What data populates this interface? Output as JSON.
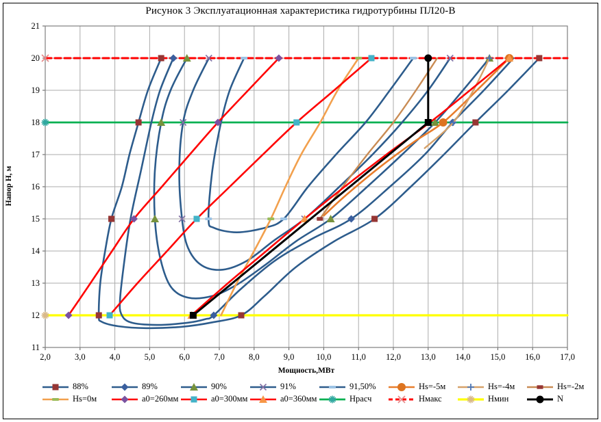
{
  "title": "Рисунок 3 Эксплуатационная характеристика гидротурбины ПЛ20-В",
  "chart_data": {
    "type": "line",
    "title": "Рисунок 3 Эксплуатационная характеристика гидротурбины ПЛ20-В",
    "xlabel": "Мощность,МВт",
    "ylabel": "Напор Н, м",
    "x_range": [
      2,
      17
    ],
    "y_range": [
      11,
      21
    ],
    "x_ticks": [
      "2,0",
      "3,0",
      "4,0",
      "5,0",
      "6,0",
      "7,0",
      "8,0",
      "9,0",
      "10,0",
      "11,0",
      "12,0",
      "13,0",
      "14,0",
      "15,0",
      "16,0",
      "17,0"
    ],
    "y_ticks": [
      "11",
      "12",
      "13",
      "14",
      "15",
      "16",
      "17",
      "18",
      "19",
      "20",
      "21"
    ],
    "grid": true,
    "legend_position": "bottom",
    "axes_note": "x = turbine power P (MW), y = head H (m); efficiency hill curves, guide-vane openings a0, suction-head limits Hs, head limits",
    "series": [
      {
        "name": "88%",
        "z": 2,
        "color": "#2d5c8c",
        "width": 2.6,
        "smooth": true,
        "marker": {
          "shape": "square",
          "color": "#963634",
          "size": 9
        },
        "points": [
          [
            5.33,
            20
          ],
          [
            4.95,
            19
          ],
          [
            4.68,
            18
          ],
          [
            4.42,
            17
          ],
          [
            4.2,
            16
          ],
          [
            3.9,
            15
          ],
          [
            3.72,
            14
          ],
          [
            3.58,
            13
          ],
          [
            3.54,
            12
          ],
          [
            3.62,
            11.8
          ],
          [
            4.1,
            11.66
          ],
          [
            4.9,
            11.6
          ],
          [
            5.9,
            11.64
          ],
          [
            6.8,
            11.78
          ],
          [
            7.63,
            12
          ],
          [
            8.3,
            12.6
          ],
          [
            9.2,
            13.5
          ],
          [
            10.3,
            14.3
          ],
          [
            11.46,
            15
          ],
          [
            12.5,
            16
          ],
          [
            13.45,
            17
          ],
          [
            14.36,
            18
          ],
          [
            15.3,
            19
          ],
          [
            16.19,
            20
          ]
        ],
        "markers": [
          [
            5.33,
            20
          ],
          [
            4.68,
            18
          ],
          [
            3.9,
            15
          ],
          [
            3.54,
            12
          ],
          [
            7.63,
            12
          ],
          [
            11.46,
            15
          ],
          [
            14.36,
            18
          ],
          [
            16.19,
            20
          ]
        ]
      },
      {
        "name": "89%",
        "z": 2,
        "color": "#2d5c8c",
        "width": 2.6,
        "smooth": true,
        "marker": {
          "shape": "diamond",
          "color": "#3a5f9e",
          "size": 9
        },
        "points": [
          [
            5.68,
            20
          ],
          [
            5.3,
            19
          ],
          [
            5.05,
            18
          ],
          [
            4.75,
            16.5
          ],
          [
            4.45,
            15
          ],
          [
            4.25,
            13.5
          ],
          [
            4.15,
            12.5
          ],
          [
            4.18,
            12.05
          ],
          [
            4.45,
            11.78
          ],
          [
            5.2,
            11.7
          ],
          [
            6.1,
            11.77
          ],
          [
            6.6,
            11.88
          ],
          [
            6.84,
            12
          ],
          [
            7.6,
            12.8
          ],
          [
            8.6,
            13.7
          ],
          [
            9.7,
            14.4
          ],
          [
            10.79,
            15
          ],
          [
            11.9,
            16
          ],
          [
            12.9,
            17
          ],
          [
            13.7,
            18
          ],
          [
            14.6,
            19
          ],
          [
            15.45,
            20
          ]
        ],
        "markers": [
          [
            5.68,
            20
          ],
          [
            6.84,
            12
          ],
          [
            10.79,
            15
          ],
          [
            13.7,
            18
          ]
        ]
      },
      {
        "name": "90%",
        "z": 2,
        "color": "#2d5c8c",
        "width": 2.6,
        "smooth": true,
        "marker": {
          "shape": "triangle",
          "color": "#76923c",
          "size": 10
        },
        "points": [
          [
            6.07,
            20
          ],
          [
            5.6,
            19
          ],
          [
            5.33,
            18
          ],
          [
            5.15,
            16.5
          ],
          [
            5.15,
            15
          ],
          [
            5.3,
            13.8
          ],
          [
            5.6,
            12.9
          ],
          [
            6.1,
            12.55
          ],
          [
            6.8,
            12.6
          ],
          [
            7.5,
            12.95
          ],
          [
            8.3,
            13.55
          ],
          [
            9.2,
            14.3
          ],
          [
            10.2,
            15
          ],
          [
            11.25,
            16
          ],
          [
            12.25,
            17
          ],
          [
            13.2,
            18
          ],
          [
            14.0,
            19
          ],
          [
            14.76,
            20
          ]
        ],
        "markers": [
          [
            6.07,
            20
          ],
          [
            5.33,
            18
          ],
          [
            5.15,
            15
          ],
          [
            10.2,
            15
          ],
          [
            13.2,
            18
          ],
          [
            14.76,
            20
          ]
        ]
      },
      {
        "name": "91%",
        "z": 2,
        "color": "#2d5c8c",
        "width": 2.6,
        "smooth": true,
        "marker": {
          "shape": "x",
          "color": "#8372a5",
          "size": 9
        },
        "points": [
          [
            6.7,
            20
          ],
          [
            6.25,
            19
          ],
          [
            5.96,
            18
          ],
          [
            5.85,
            16.5
          ],
          [
            5.93,
            15
          ],
          [
            6.1,
            14.1
          ],
          [
            6.5,
            13.55
          ],
          [
            7.1,
            13.42
          ],
          [
            7.8,
            13.7
          ],
          [
            8.6,
            14.35
          ],
          [
            9.45,
            15
          ],
          [
            10.45,
            16
          ],
          [
            11.4,
            17
          ],
          [
            12.25,
            18
          ],
          [
            13.0,
            19
          ],
          [
            13.63,
            20
          ]
        ],
        "markers": [
          [
            6.7,
            20
          ],
          [
            5.96,
            18
          ],
          [
            5.93,
            15
          ],
          [
            9.45,
            15
          ],
          [
            13.63,
            20
          ]
        ]
      },
      {
        "name": "91,50%",
        "z": 2,
        "color": "#2d5c8c",
        "width": 2.6,
        "smooth": true,
        "marker": {
          "shape": "dash",
          "color": "#9cc3e5",
          "size": 10
        },
        "points": [
          [
            7.71,
            20
          ],
          [
            7.3,
            19
          ],
          [
            7.05,
            18
          ],
          [
            6.8,
            16.5
          ],
          [
            6.69,
            15
          ],
          [
            6.85,
            14.72
          ],
          [
            7.5,
            14.58
          ],
          [
            8.3,
            14.72
          ],
          [
            8.85,
            15
          ],
          [
            9.55,
            16
          ],
          [
            10.35,
            17
          ],
          [
            11.2,
            18
          ],
          [
            11.9,
            19
          ],
          [
            12.57,
            20
          ]
        ],
        "markers": [
          [
            7.71,
            20
          ],
          [
            6.69,
            15
          ],
          [
            8.85,
            15
          ],
          [
            12.57,
            20
          ]
        ]
      },
      {
        "name": "Нs=-5м",
        "z": 3,
        "color": "#e87d2c",
        "width": 2.6,
        "smooth": true,
        "marker": {
          "shape": "circle",
          "color": "#dd7420",
          "size": 11
        },
        "points": [
          [
            10.0,
            15.1
          ],
          [
            10.6,
            15.7
          ],
          [
            11.6,
            16.6
          ],
          [
            12.6,
            17.4
          ],
          [
            13.43,
            18
          ],
          [
            14.4,
            19
          ],
          [
            15.33,
            20
          ]
        ],
        "markers": [
          [
            13.43,
            18
          ],
          [
            15.33,
            20
          ]
        ]
      },
      {
        "name": "Нs=-4м",
        "z": 3,
        "color": "#d6a169",
        "width": 2.4,
        "smooth": true,
        "marker": {
          "shape": "plus",
          "color": "#4a76b8",
          "size": 10
        },
        "points": [
          [
            12.9,
            17.2
          ],
          [
            13.72,
            18
          ],
          [
            14.3,
            19
          ],
          [
            14.76,
            20
          ]
        ],
        "markers": [
          [
            13.72,
            18
          ],
          [
            14.76,
            20
          ]
        ]
      },
      {
        "name": "Нs=-2м",
        "z": 3,
        "color": "#c98b53",
        "width": 2.4,
        "smooth": true,
        "marker": {
          "shape": "hbar",
          "color": "#963634",
          "size": 9
        },
        "points": [
          [
            9.89,
            15
          ],
          [
            10.55,
            16
          ],
          [
            11.25,
            17
          ],
          [
            12.0,
            18
          ],
          [
            12.65,
            19
          ],
          [
            13.26,
            20
          ]
        ],
        "markers": [
          [
            9.89,
            15
          ]
        ]
      },
      {
        "name": "Нs=0м",
        "z": 3,
        "color": "#f2a04d",
        "width": 2.6,
        "smooth": true,
        "marker": {
          "shape": "dash",
          "color": "#9bbb59",
          "size": 10
        },
        "points": [
          [
            7.05,
            12
          ],
          [
            7.5,
            13
          ],
          [
            8.0,
            14
          ],
          [
            8.48,
            15
          ],
          [
            8.9,
            16
          ],
          [
            9.35,
            17
          ],
          [
            9.9,
            18
          ],
          [
            10.4,
            19
          ],
          [
            11.0,
            20
          ]
        ],
        "markers": [
          [
            8.48,
            15
          ],
          [
            11.0,
            20
          ]
        ]
      },
      {
        "name": "a0=260мм",
        "z": 4,
        "color": "#ff0000",
        "width": 2.6,
        "smooth": true,
        "marker": {
          "shape": "diamond",
          "color": "#7a52a0",
          "size": 9
        },
        "points": [
          [
            2.67,
            12
          ],
          [
            3.3,
            13
          ],
          [
            3.92,
            14
          ],
          [
            4.55,
            15
          ],
          [
            5.35,
            16
          ],
          [
            6.15,
            17
          ],
          [
            6.96,
            18
          ],
          [
            7.83,
            19
          ],
          [
            8.71,
            20
          ]
        ],
        "markers": [
          [
            2.67,
            12
          ],
          [
            4.55,
            15
          ],
          [
            6.96,
            18
          ],
          [
            8.71,
            20
          ]
        ]
      },
      {
        "name": "a0=300мм",
        "z": 4,
        "color": "#ff0000",
        "width": 2.6,
        "smooth": true,
        "marker": {
          "shape": "square",
          "color": "#43b3c8",
          "size": 9
        },
        "points": [
          [
            3.85,
            12
          ],
          [
            4.65,
            13
          ],
          [
            5.5,
            14
          ],
          [
            6.35,
            15
          ],
          [
            7.3,
            16
          ],
          [
            8.25,
            17
          ],
          [
            9.22,
            18
          ],
          [
            10.3,
            19
          ],
          [
            11.37,
            20
          ]
        ],
        "markers": [
          [
            3.85,
            12
          ],
          [
            6.35,
            15
          ],
          [
            9.22,
            18
          ],
          [
            11.37,
            20
          ]
        ]
      },
      {
        "name": "a0=360мм",
        "z": 4,
        "color": "#ff0000",
        "width": 2.6,
        "smooth": true,
        "marker": {
          "shape": "triangle",
          "color": "#f79646",
          "size": 10
        },
        "points": [
          [
            6.2,
            12
          ],
          [
            7.25,
            13
          ],
          [
            8.35,
            14
          ],
          [
            9.45,
            15
          ],
          [
            10.6,
            16
          ],
          [
            11.8,
            17
          ],
          [
            13.05,
            18
          ],
          [
            14.2,
            19
          ],
          [
            15.33,
            20
          ]
        ],
        "markers": [
          [
            6.2,
            12
          ],
          [
            9.45,
            15
          ],
          [
            15.33,
            20
          ]
        ]
      },
      {
        "name": "Нрасч",
        "z": 1,
        "color": "#00b050",
        "width": 2.8,
        "smooth": false,
        "marker": {
          "shape": "asterisk",
          "color": "#31a8a0",
          "size": 11
        },
        "points": [
          [
            2,
            18
          ],
          [
            17,
            18
          ]
        ],
        "markers": [
          [
            2,
            18
          ]
        ]
      },
      {
        "name": "Нмакс",
        "z": 1,
        "color": "#ff0000",
        "width": 3,
        "dash": "9,5",
        "smooth": false,
        "marker": {
          "shape": "x",
          "color": "#e78a8a",
          "size": 10
        },
        "points": [
          [
            2,
            20
          ],
          [
            17,
            20
          ]
        ],
        "markers": [
          [
            2,
            20
          ]
        ]
      },
      {
        "name": "Нмин",
        "z": 1,
        "color": "#ffff00",
        "width": 3.2,
        "smooth": false,
        "marker": {
          "shape": "asterisk",
          "color": "#d9b98a",
          "size": 11
        },
        "points": [
          [
            2,
            12
          ],
          [
            17,
            12
          ]
        ],
        "markers": [
          [
            2,
            12
          ]
        ]
      },
      {
        "name": "N",
        "z": 5,
        "color": "#000000",
        "width": 3,
        "smooth": false,
        "marker": {
          "shape": "circle",
          "color": "#000000",
          "size": 10
        },
        "points": [
          [
            6.25,
            12
          ],
          [
            13.0,
            18
          ],
          [
            13.0,
            20
          ]
        ],
        "markers": [
          [
            6.25,
            12,
            "square"
          ],
          [
            13.0,
            18,
            "square"
          ],
          [
            13.0,
            20,
            "circle"
          ]
        ]
      }
    ]
  }
}
